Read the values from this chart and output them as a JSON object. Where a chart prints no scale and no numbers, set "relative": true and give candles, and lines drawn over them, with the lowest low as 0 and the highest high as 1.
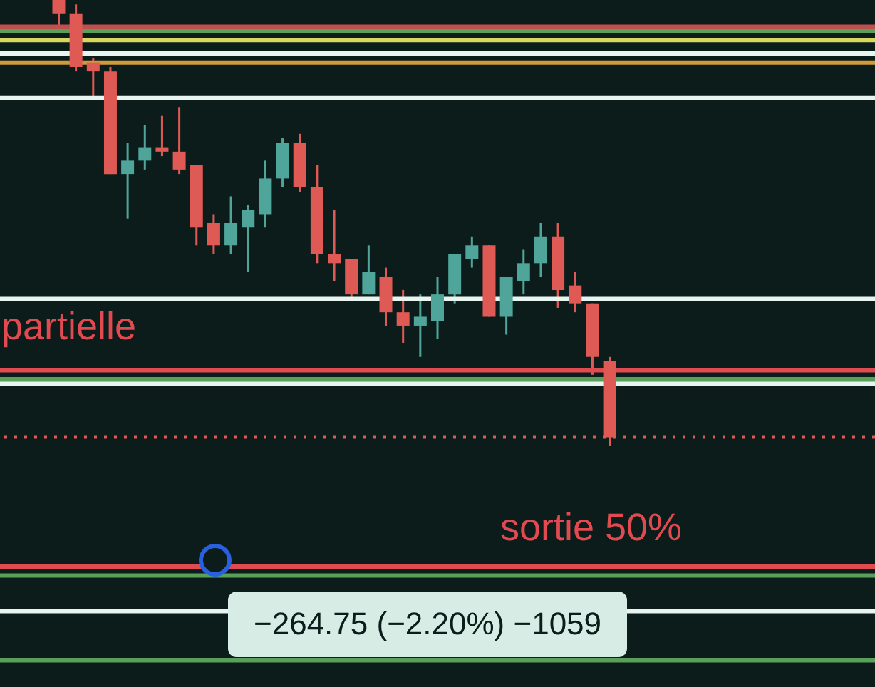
{
  "chart_data": {
    "type": "candlestick",
    "relative": true,
    "categories": [
      null,
      null,
      null,
      null,
      null,
      null,
      null,
      null,
      null,
      null,
      null,
      null,
      null,
      null,
      null,
      null,
      null,
      null,
      null,
      null,
      null,
      null,
      null,
      null,
      null,
      null,
      null,
      null,
      null,
      null,
      null,
      null,
      null
    ],
    "ohlc": [
      [
        1.0,
        1.0,
        0.94,
        0.97
      ],
      [
        0.97,
        0.99,
        0.84,
        0.85
      ],
      [
        0.86,
        0.87,
        0.78,
        0.84
      ],
      [
        0.84,
        0.85,
        0.61,
        0.61
      ],
      [
        0.61,
        0.68,
        0.51,
        0.64
      ],
      [
        0.64,
        0.72,
        0.62,
        0.67
      ],
      [
        0.67,
        0.74,
        0.65,
        0.66
      ],
      [
        0.66,
        0.76,
        0.61,
        0.62
      ],
      [
        0.63,
        0.63,
        0.45,
        0.49
      ],
      [
        0.5,
        0.52,
        0.43,
        0.45
      ],
      [
        0.45,
        0.56,
        0.43,
        0.5
      ],
      [
        0.49,
        0.54,
        0.39,
        0.53
      ],
      [
        0.52,
        0.64,
        0.49,
        0.6
      ],
      [
        0.6,
        0.69,
        0.58,
        0.68
      ],
      [
        0.68,
        0.7,
        0.57,
        0.58
      ],
      [
        0.58,
        0.63,
        0.41,
        0.43
      ],
      [
        0.43,
        0.53,
        0.37,
        0.41
      ],
      [
        0.42,
        0.42,
        0.33,
        0.34
      ],
      [
        0.34,
        0.45,
        0.34,
        0.39
      ],
      [
        0.38,
        0.4,
        0.27,
        0.3
      ],
      [
        0.3,
        0.35,
        0.23,
        0.27
      ],
      [
        0.27,
        0.34,
        0.2,
        0.29
      ],
      [
        0.28,
        0.38,
        0.24,
        0.34
      ],
      [
        0.34,
        0.43,
        0.32,
        0.43
      ],
      [
        0.42,
        0.47,
        0.4,
        0.45
      ],
      [
        0.45,
        0.45,
        0.29,
        0.29
      ],
      [
        0.29,
        0.38,
        0.25,
        0.38
      ],
      [
        0.37,
        0.44,
        0.34,
        0.41
      ],
      [
        0.41,
        0.5,
        0.38,
        0.47
      ],
      [
        0.47,
        0.5,
        0.31,
        0.35
      ],
      [
        0.36,
        0.39,
        0.3,
        0.32
      ],
      [
        0.32,
        0.32,
        0.16,
        0.2
      ],
      [
        0.19,
        0.2,
        0.0,
        0.02
      ]
    ],
    "ref_lines": [
      {
        "axis": "y",
        "value": 0.94,
        "color": "#c0504d"
      },
      {
        "axis": "y",
        "value": 0.93,
        "color": "#5aa05a"
      },
      {
        "axis": "y",
        "value": 0.91,
        "color": "#d8d860"
      },
      {
        "axis": "y",
        "value": 0.88,
        "color": "#e8f4f0"
      },
      {
        "axis": "y",
        "value": 0.86,
        "color": "#d09a3a"
      },
      {
        "axis": "y",
        "value": 0.78,
        "color": "#e8f4f0"
      },
      {
        "axis": "y",
        "value": 0.33,
        "color": "#e8f4f0"
      },
      {
        "axis": "y",
        "value": 0.17,
        "color": "#e04a50"
      },
      {
        "axis": "y",
        "value": 0.15,
        "color": "#5aa05a"
      },
      {
        "axis": "y",
        "value": 0.14,
        "color": "#e8f4f0"
      },
      {
        "axis": "y",
        "value": 0.02,
        "color": "#e05a55",
        "line_style": "dotted"
      },
      {
        "axis": "y",
        "value": -0.27,
        "color": "#e04a50"
      },
      {
        "axis": "y",
        "value": -0.29,
        "color": "#5aa05a"
      },
      {
        "axis": "y",
        "value": -0.37,
        "color": "#e8f4f0"
      },
      {
        "axis": "y",
        "value": -0.48,
        "color": "#5aa05a"
      }
    ],
    "annotations": [
      "partielle",
      "sortie 50%",
      "−264.75 (−2.20%) −1059"
    ]
  }
}
